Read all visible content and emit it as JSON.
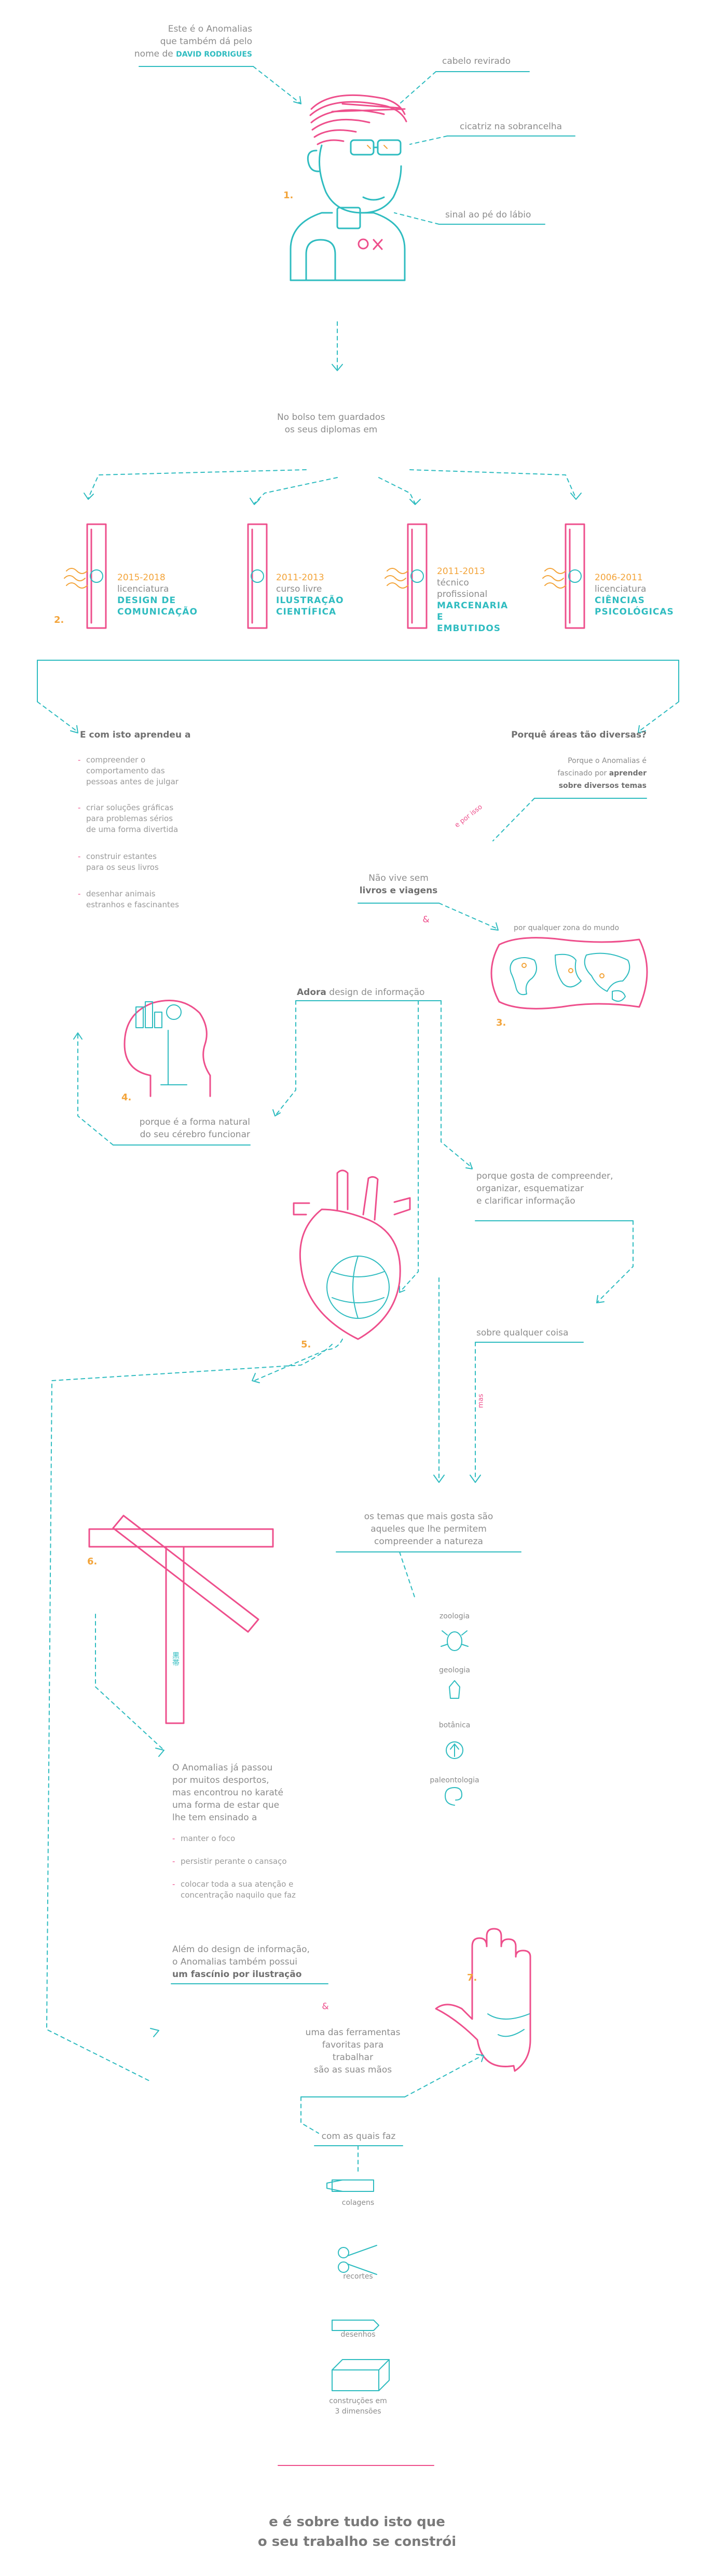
{
  "colors": {
    "cyan": "#2fbcc0",
    "pink": "#ee4f8c",
    "orange": "#f3a43a",
    "grey": "#8c8c8c"
  },
  "intro": {
    "line1": "Este é o Anomalias",
    "line2": "que também dá pelo",
    "line3": "nome de",
    "name": "DAVID RODRIGUES"
  },
  "portrait": {
    "number": "1.",
    "labels": [
      "cabelo revirado",
      "cicatriz na sobrancelha",
      "sinal ao pé do lábio"
    ]
  },
  "diplomas": {
    "intro_line1": "No bolso tem guardados",
    "intro_line2": "os seus diplomas em",
    "number": "2.",
    "items": [
      {
        "years": "2015-2018",
        "type": "licenciatura",
        "name_line1": "DESIGN DE",
        "name_line2": "COMUNICAÇÃO"
      },
      {
        "years": "2011-2013",
        "type": "curso livre",
        "name_line1": "ILUSTRAÇÃO",
        "name_line2": "CIENTÍFICA"
      },
      {
        "years": "2011-2013",
        "type": "técnico profissional",
        "name_line1": "MARCENARIA E",
        "name_line2": "EMBUTIDOS"
      },
      {
        "years": "2006-2011",
        "type": "licenciatura",
        "name_line1": "CIÊNCIAS",
        "name_line2": "PSICOLÓGICAS"
      }
    ]
  },
  "learned": {
    "title": "E com isto aprendeu a",
    "items": [
      [
        "compreender o",
        "comportamento das",
        "pessoas antes de julgar"
      ],
      [
        "criar soluções gráficas",
        "para problemas sérios",
        "de uma forma divertida"
      ],
      [
        "construir estantes",
        "para os seus livros"
      ],
      [
        "desenhar animais",
        "estranhos e fascinantes"
      ]
    ]
  },
  "why": {
    "title": "Porquê áreas tão diversas?",
    "line1": "Porque o Anomalias é",
    "line2": "fascinado por",
    "bold1": "aprender",
    "bold2": "sobre diversos temas"
  },
  "books": {
    "line1": "Não vive sem",
    "bold": "livros e viagens",
    "amp": "&",
    "world_label": "por qualquer zona do mundo",
    "world_number": "3.",
    "side_word": "e por isso"
  },
  "infodesign": {
    "adora": "Adora",
    "rest": "design de informação",
    "brain_number": "4.",
    "brain_line1": "porque é a forma natural",
    "brain_line2": "do seu cérebro funcionar",
    "reason_line1": "porque gosta de compreender,",
    "reason_line2": "organizar, esquematizar",
    "reason_line3": "e clarificar informação",
    "heart_number": "5.",
    "about": "sobre qualquer coisa",
    "side_word": "mas"
  },
  "nature": {
    "line1": "os temas que mais gosta são",
    "line2": "aqueles que lhe permitem",
    "line3": "compreender a natureza",
    "items": [
      "zoologia",
      "geologia",
      "botânica",
      "paleontologia"
    ]
  },
  "karate": {
    "number": "6.",
    "belt_text": "黒帯",
    "line1": "O Anomalias já passou",
    "line2": "por muitos desportos,",
    "line3": "mas encontrou no karaté",
    "line4": "uma forma de estar que",
    "line5": "lhe tem ensinado a",
    "items": [
      [
        "manter o foco"
      ],
      [
        "persistir perante o cansaço"
      ],
      [
        "colocar toda a sua atenção e",
        "concentração naquilo que faz"
      ]
    ]
  },
  "illustration": {
    "line1": "Além do design de informação,",
    "line2": "o Anomalias também possui",
    "bold": "um fascínio por ilustração",
    "hand_number": "7.",
    "amp": "&",
    "tools_line1": "uma das ferramentas",
    "tools_line2": "favoritas para trabalhar",
    "tools_line3": "são as suas mãos",
    "with": "com as quais faz",
    "works": [
      [
        "colagens"
      ],
      [
        "recortes"
      ],
      [
        "desenhos"
      ],
      [
        "construções em",
        "3 dimensões"
      ]
    ]
  },
  "closing": {
    "line1": "e é sobre tudo isto que",
    "line2": "o seu trabalho se constrói"
  }
}
